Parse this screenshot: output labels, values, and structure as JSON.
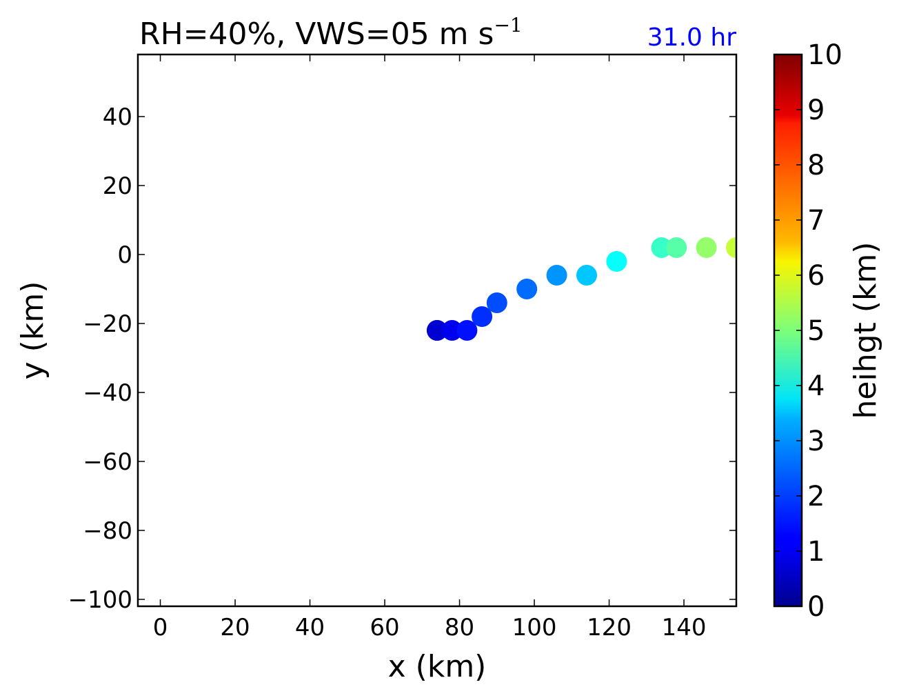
{
  "chart_data": {
    "type": "scatter",
    "title": "RH=40%, VWS=05 m s",
    "title_superscript": "−1",
    "time_label": "31.0 hr",
    "time_label_color": "#0000ff",
    "xlabel": "x (km)",
    "ylabel": "y (km)",
    "xlim": [
      -6,
      154
    ],
    "ylim": [
      -102,
      58
    ],
    "xticks": [
      0,
      20,
      40,
      60,
      80,
      100,
      120,
      140
    ],
    "xtick_labels": [
      "0",
      "20",
      "40",
      "60",
      "80",
      "100",
      "120",
      "140"
    ],
    "yticks": [
      -100,
      -80,
      -60,
      -40,
      -20,
      0,
      20,
      40
    ],
    "ytick_labels": [
      "−100",
      "−80",
      "−60",
      "−40",
      "−20",
      "0",
      "20",
      "40"
    ],
    "grid": false,
    "colormap": "jet",
    "colorbar": {
      "label": "heihgt (km)",
      "range": [
        0,
        10
      ],
      "ticks": [
        "0",
        "1",
        "2",
        "3",
        "4",
        "5",
        "6",
        "7",
        "8",
        "9",
        "10"
      ]
    },
    "points": [
      {
        "x": 74,
        "y": -22,
        "height": 0.5
      },
      {
        "x": 74,
        "y": -22,
        "height": 0.8
      },
      {
        "x": 78,
        "y": -22,
        "height": 1.1
      },
      {
        "x": 82,
        "y": -22,
        "height": 1.4
      },
      {
        "x": 86,
        "y": -18,
        "height": 1.7
      },
      {
        "x": 90,
        "y": -14,
        "height": 2.0
      },
      {
        "x": 98,
        "y": -10,
        "height": 2.3
      },
      {
        "x": 106,
        "y": -6,
        "height": 2.7
      },
      {
        "x": 114,
        "y": -6,
        "height": 3.2
      },
      {
        "x": 122,
        "y": -2,
        "height": 3.8
      },
      {
        "x": 134,
        "y": 2,
        "height": 4.3
      },
      {
        "x": 138,
        "y": 2,
        "height": 4.6
      },
      {
        "x": 146,
        "y": 2,
        "height": 5.2
      },
      {
        "x": 154,
        "y": 2,
        "height": 5.7
      }
    ]
  }
}
